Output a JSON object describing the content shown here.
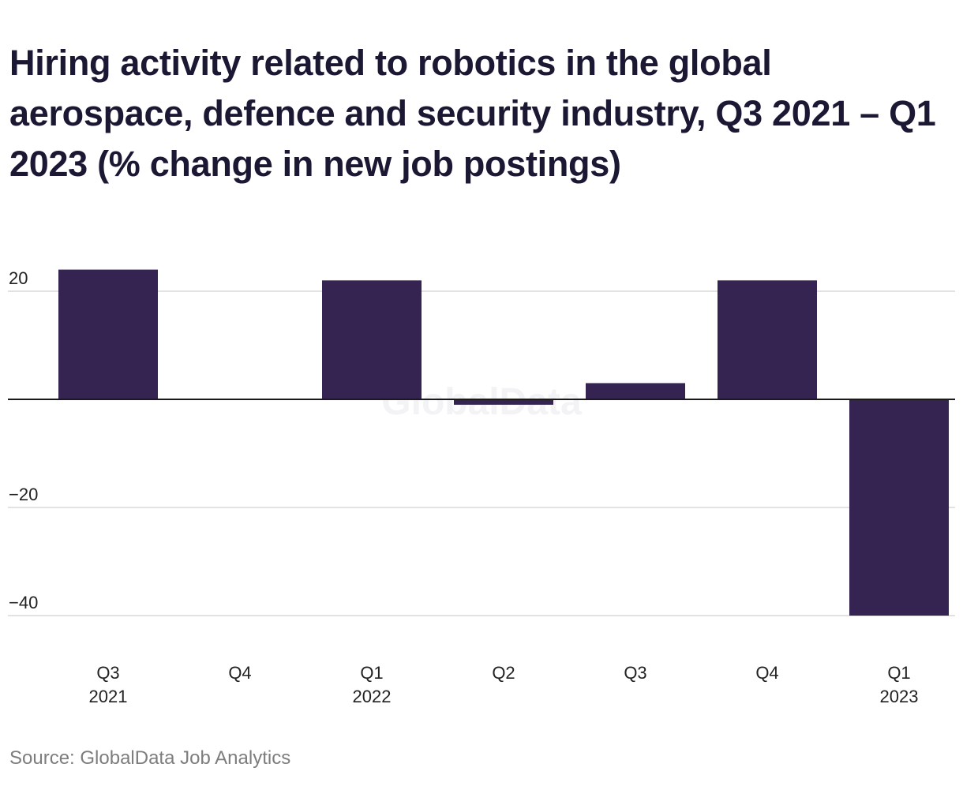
{
  "chart_data": {
    "type": "bar",
    "title": "Hiring activity related to robotics in the global aerospace, defence and security industry, Q3 2021 – Q1 2023 (% change in new job postings)",
    "categories": [
      {
        "quarter": "Q3",
        "year": "2021"
      },
      {
        "quarter": "Q4",
        "year": ""
      },
      {
        "quarter": "Q1",
        "year": "2022"
      },
      {
        "quarter": "Q2",
        "year": ""
      },
      {
        "quarter": "Q3",
        "year": ""
      },
      {
        "quarter": "Q4",
        "year": ""
      },
      {
        "quarter": "Q1",
        "year": "2023"
      }
    ],
    "values": [
      24,
      0,
      22,
      -1,
      3,
      22,
      -40
    ],
    "ylim": [
      -40,
      24
    ],
    "yticks": [
      20,
      -20,
      -40
    ],
    "ytick_labels": [
      "20",
      "−20",
      "−40"
    ],
    "grid": true,
    "legend": "none",
    "watermark": "GlobalData",
    "source": "Source: GlobalData Job Analytics"
  },
  "colors": {
    "bar": "#352451",
    "title": "#1b1834",
    "axis_text": "#222222",
    "grid": "#d9d9d9",
    "zero_line": "#1a1a1a",
    "source": "#7d7d7d",
    "watermark": "#f3f3f5"
  }
}
